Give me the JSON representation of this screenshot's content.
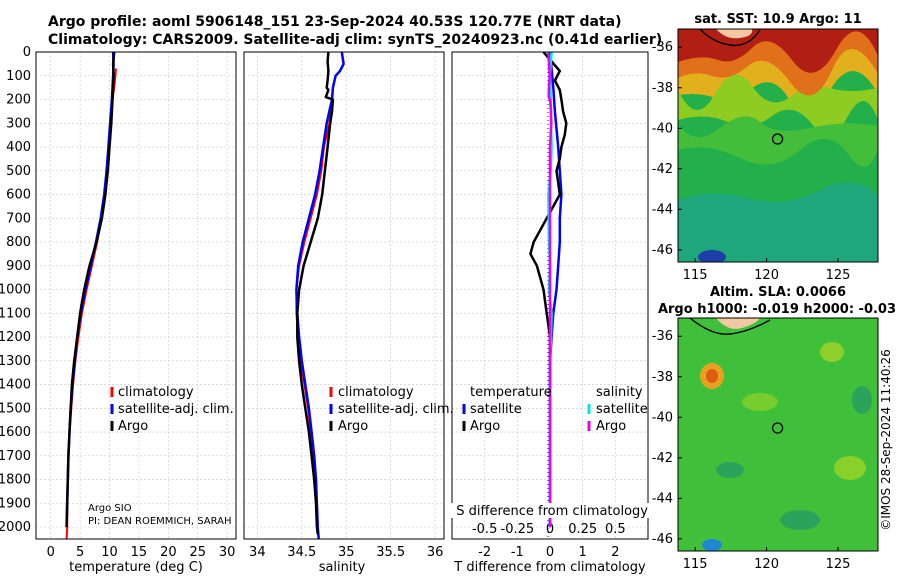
{
  "title": {
    "line1": "Argo profile: aoml 5906148_151 23-Sep-2024 40.53S 120.77E (NRT data)",
    "line2": "Climatology: CARS2009. Satellite-adj clim: synTS_20240923.nc (0.41d earlier)"
  },
  "colors": {
    "climatology": "#ff0000",
    "satellite_adj": "#0000ff",
    "argo": "#000000",
    "temp_satellite": "#0000ff",
    "sal_satellite": "#00e5ee",
    "sal_argo": "#ee00ee",
    "grid": "#c8c8c8"
  },
  "attribution": {
    "line1": "Argo SIO",
    "line2": "PI: DEAN ROEMMICH, SARAH"
  },
  "imos_stamp": "©IMOS 28-Sep-2024 11:40:26",
  "chart_data": [
    {
      "type": "line",
      "name": "temperature-profile",
      "xlabel": "temperature (deg C)",
      "ylabel": "",
      "xlim": [
        -2.5,
        31.5
      ],
      "ylim": [
        2050,
        0
      ],
      "xticks": [
        0,
        5,
        10,
        15,
        20,
        25,
        30
      ],
      "yticks": [
        0,
        100,
        200,
        300,
        400,
        500,
        600,
        700,
        800,
        900,
        1000,
        1100,
        1200,
        1300,
        1400,
        1500,
        1600,
        1700,
        1800,
        1900,
        2000
      ],
      "grid": true,
      "legend": {
        "placement": "lower-right",
        "entries": [
          "climatology",
          "satellite-adj. clim.",
          "Argo"
        ]
      },
      "series": [
        {
          "name": "climatology",
          "x": [
            11.1,
            11.0,
            10.8,
            10.5,
            10.2,
            9.9,
            9.6,
            9.2,
            8.6,
            7.9,
            7.0,
            6.1,
            5.3,
            4.7,
            4.2,
            3.8,
            3.5,
            3.2,
            3.0,
            2.9,
            2.8,
            2.8,
            2.7
          ],
          "y": [
            70,
            100,
            150,
            200,
            300,
            400,
            500,
            600,
            700,
            800,
            900,
            1000,
            1100,
            1200,
            1300,
            1400,
            1500,
            1600,
            1700,
            1800,
            1900,
            2000,
            2050
          ]
        },
        {
          "name": "satellite-adj. clim.",
          "x": [
            10.6,
            10.7,
            10.6,
            10.4,
            10.1,
            9.8,
            9.5,
            9.1,
            8.5,
            7.7,
            6.8,
            5.9,
            5.1,
            4.5,
            4.1,
            3.7,
            3.4,
            3.2,
            3.0,
            2.9,
            2.8,
            2.7
          ],
          "y": [
            0,
            50,
            100,
            200,
            300,
            400,
            500,
            600,
            700,
            800,
            900,
            1000,
            1100,
            1200,
            1300,
            1400,
            1500,
            1600,
            1700,
            1800,
            1900,
            2000
          ]
        },
        {
          "name": "Argo",
          "x": [
            10.8,
            10.6,
            10.7,
            10.5,
            10.3,
            10.0,
            9.7,
            9.3,
            8.7,
            7.8,
            6.6,
            5.7,
            5.0,
            4.5,
            4.0,
            3.6,
            3.4,
            3.2,
            3.0,
            2.9,
            2.8,
            2.7
          ],
          "y": [
            0,
            50,
            100,
            200,
            300,
            400,
            500,
            600,
            700,
            800,
            900,
            1000,
            1100,
            1200,
            1300,
            1400,
            1500,
            1600,
            1700,
            1800,
            1900,
            2000
          ]
        }
      ]
    },
    {
      "type": "line",
      "name": "salinity-profile",
      "xlabel": "salinity",
      "xlim": [
        33.85,
        36.1
      ],
      "ylim": [
        2050,
        0
      ],
      "xticks": [
        34,
        34.5,
        35,
        35.5,
        36
      ],
      "xtick_labels": [
        "34",
        "34.5",
        "35",
        "35.5",
        "36"
      ],
      "grid": true,
      "legend": {
        "placement": "lower-right",
        "entries": [
          "climatology",
          "satellite-adj. clim.",
          "Argo"
        ]
      },
      "series": [
        {
          "name": "climatology",
          "x": [
            34.84,
            34.83,
            34.81,
            34.78,
            34.75,
            34.72,
            34.67,
            34.6,
            34.53,
            34.47,
            34.44,
            34.44,
            34.46,
            34.49,
            34.53,
            34.57,
            34.6,
            34.63,
            34.65,
            34.67,
            34.68,
            34.69
          ],
          "y": [
            200,
            250,
            300,
            350,
            400,
            500,
            600,
            700,
            800,
            900,
            1000,
            1100,
            1200,
            1300,
            1400,
            1500,
            1600,
            1700,
            1800,
            1900,
            2000,
            2050
          ]
        },
        {
          "name": "satellite-adj. clim.",
          "x": [
            34.95,
            34.97,
            34.93,
            34.88,
            34.85,
            34.84,
            34.81,
            34.78,
            34.74,
            34.7,
            34.65,
            34.58,
            34.51,
            34.46,
            34.44,
            34.45,
            34.47,
            34.5,
            34.54,
            34.58,
            34.61,
            34.64,
            34.66,
            34.67,
            34.68,
            34.69
          ],
          "y": [
            0,
            50,
            80,
            100,
            150,
            200,
            250,
            300,
            400,
            500,
            600,
            700,
            800,
            900,
            1000,
            1100,
            1200,
            1300,
            1400,
            1500,
            1600,
            1700,
            1800,
            1900,
            2000,
            2050
          ]
        },
        {
          "name": "Argo",
          "x": [
            34.8,
            34.79,
            34.8,
            34.79,
            34.78,
            34.8,
            34.77,
            34.85,
            34.84,
            34.82,
            34.79,
            34.76,
            34.73,
            34.68,
            34.6,
            34.52,
            34.47,
            34.45,
            34.45,
            34.47,
            34.5,
            34.54,
            34.58,
            34.61,
            34.64,
            34.66,
            34.67,
            34.68
          ],
          "y": [
            0,
            40,
            80,
            120,
            150,
            160,
            190,
            200,
            250,
            300,
            400,
            500,
            600,
            700,
            800,
            900,
            1000,
            1100,
            1200,
            1300,
            1400,
            1500,
            1600,
            1700,
            1800,
            1900,
            2000,
            2030
          ]
        }
      ]
    },
    {
      "type": "line",
      "name": "difference-from-climatology",
      "xlabel": "T difference from climatology",
      "secondary_xlabel": "S difference from climatology",
      "xlim": [
        -3,
        3
      ],
      "ylim": [
        2050,
        0
      ],
      "xticks": [
        -2,
        -1,
        0,
        1,
        2
      ],
      "xtick_labels": [
        "-2",
        "-1",
        "0",
        "1",
        "2"
      ],
      "secondary_xticks": [
        -0.5,
        -0.25,
        0,
        0.25,
        0.5
      ],
      "secondary_xtick_labels": [
        "-0.5",
        "-0.25",
        "0",
        "0.25",
        "0.5"
      ],
      "grid": true,
      "legend": {
        "placement": "lower",
        "groups": [
          {
            "header": "temperature",
            "entries": [
              "satellite",
              "Argo"
            ]
          },
          {
            "header": "salinity",
            "entries": [
              "satellite",
              "Argo"
            ]
          }
        ]
      },
      "series": [
        {
          "name": "temperature satellite",
          "x": [
            0,
            0.1,
            0.15,
            0.25,
            0.3,
            0.35,
            0.3,
            0.3,
            0.25,
            0.2,
            0.1,
            0.05,
            0,
            0,
            0,
            0,
            0,
            0,
            0,
            0
          ],
          "y": [
            0,
            150,
            250,
            400,
            500,
            600,
            700,
            800,
            900,
            1000,
            1100,
            1200,
            1300,
            1400,
            1500,
            1600,
            1700,
            1800,
            1900,
            2000
          ]
        },
        {
          "name": "temperature Argo",
          "x": [
            -0.2,
            0.3,
            0.15,
            0.3,
            0.35,
            0.4,
            0.5,
            0.45,
            0.35,
            0.3,
            0.2,
            0.25,
            0.3,
            0.1,
            -0.1,
            -0.3,
            -0.5,
            -0.6,
            -0.4,
            -0.3,
            -0.2,
            -0.15,
            -0.1,
            -0.05,
            0,
            0,
            0
          ],
          "y": [
            0,
            80,
            120,
            160,
            200,
            250,
            300,
            350,
            400,
            450,
            500,
            550,
            600,
            650,
            700,
            750,
            800,
            850,
            900,
            950,
            1000,
            1050,
            1100,
            1150,
            1200,
            1300,
            1400
          ]
        },
        {
          "name": "salinity satellite",
          "x": [
            0.05,
            0.02,
            0,
            0.02,
            0.03,
            0.05,
            0.02,
            -0.05,
            -0.04,
            -0.03,
            0,
            -0.03,
            0.05,
            0.03,
            0,
            0,
            0,
            0,
            0,
            0,
            0
          ],
          "y": [
            0,
            50,
            100,
            200,
            300,
            400,
            500,
            600,
            700,
            800,
            900,
            1000,
            1100,
            1200,
            1300,
            1400,
            1500,
            1600,
            1700,
            1800,
            2000
          ]
        },
        {
          "name": "salinity Argo",
          "x": [
            -0.05,
            -0.01,
            -0.03,
            -0.04,
            0,
            0.03,
            0.04,
            0,
            0,
            0,
            0,
            0,
            0,
            0,
            0,
            0,
            0,
            0
          ],
          "y": [
            0,
            100,
            150,
            190,
            200,
            250,
            300,
            400,
            500,
            700,
            900,
            1100,
            1300,
            1500,
            1600,
            1800,
            1900,
            2000
          ]
        }
      ]
    },
    {
      "type": "heatmap",
      "name": "satellite-sst-map",
      "title": "sat. SST: 10.9 Argo: 11",
      "xticks": [
        115,
        120,
        125
      ],
      "yticks": [
        -36,
        -38,
        -40,
        -42,
        -44,
        -46
      ],
      "xlim": [
        113.8,
        127.8
      ],
      "ylim": [
        -46.6,
        -35.1
      ],
      "argo_position": [
        120.77,
        -40.53
      ]
    },
    {
      "type": "heatmap",
      "name": "altimetry-sla-map",
      "title_line1": "Altim. SLA: 0.0066",
      "title_line2": "Argo h1000: -0.019 h2000: -0.03",
      "xticks": [
        115,
        120,
        125
      ],
      "yticks": [
        -36,
        -38,
        -40,
        -42,
        -44,
        -46
      ],
      "xlim": [
        113.8,
        127.8
      ],
      "ylim": [
        -46.6,
        -35.1
      ],
      "argo_position": [
        120.77,
        -40.53
      ]
    }
  ]
}
